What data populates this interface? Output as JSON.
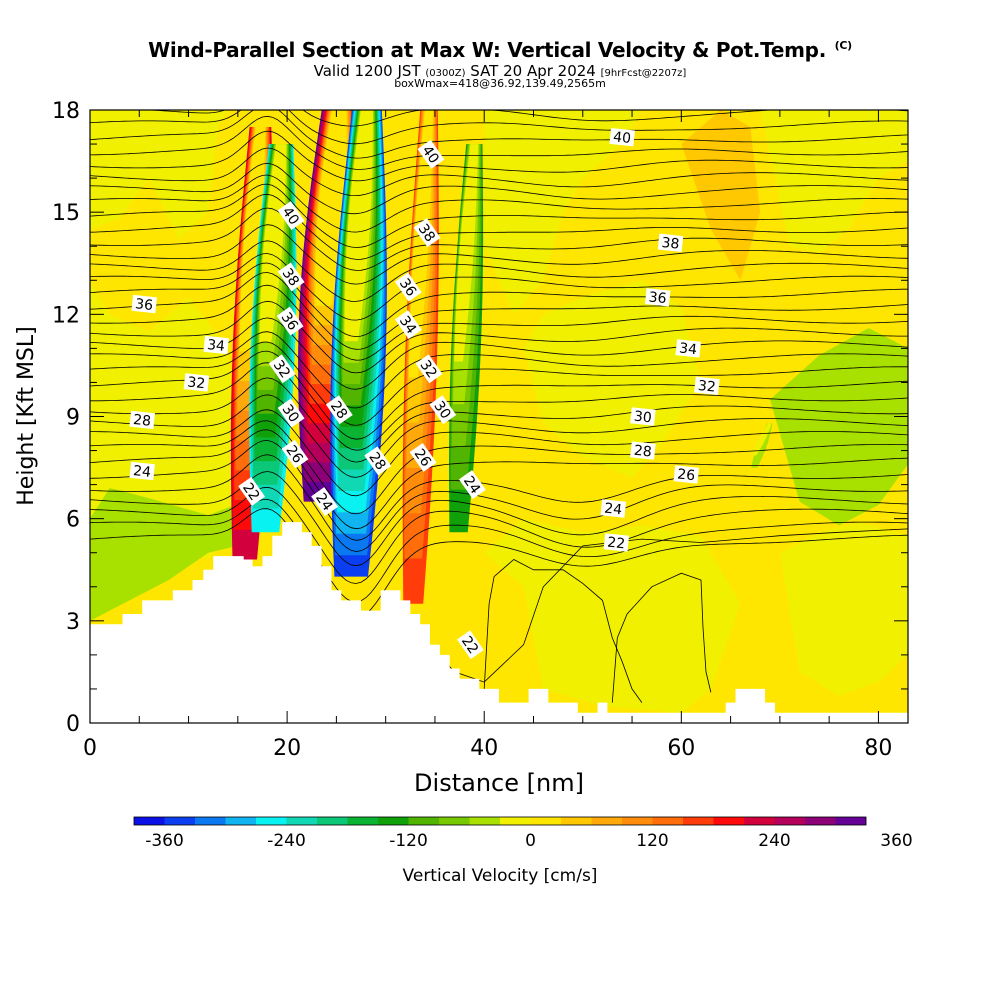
{
  "chart_data": {
    "type": "heatmap",
    "title": "Wind-Parallel Section at Max W: Vertical Velocity & Pot.Temp.",
    "title_mark": "(C)",
    "subtitle_prefix": "Valid 1200 JST",
    "subtitle_zulu": "(0300Z)",
    "subtitle_main": "SAT 20 Apr 2024",
    "subtitle_fcst": "[9hrFcst@2207z]",
    "subnote": "boxWmax=418@36.92,139.49,2565m",
    "xlabel": "Distance [nm]",
    "ylabel": "Height [Kft MSL]",
    "xlim": [
      0,
      83
    ],
    "ylim": [
      0,
      18
    ],
    "x_ticks": [
      "0",
      "20",
      "40",
      "60",
      "80"
    ],
    "y_ticks": [
      "0",
      "3",
      "6",
      "9",
      "12",
      "15",
      "18"
    ],
    "colorbar": {
      "label": "Vertical Velocity [cm/s]",
      "min": -390,
      "step": 30,
      "tick_labels": [
        "-360",
        "-240",
        "-120",
        "0",
        "120",
        "240",
        "360"
      ],
      "colors": [
        "#0a10e6",
        "#0a3ef0",
        "#0a78f0",
        "#10b4f0",
        "#08f2f2",
        "#10d8b4",
        "#0ac878",
        "#0ab432",
        "#10a00a",
        "#50b400",
        "#78c800",
        "#a8e000",
        "#f0f000",
        "#ffe600",
        "#ffc800",
        "#ffaa0a",
        "#ff8c0a",
        "#ff6e0a",
        "#ff3c0a",
        "#ff0a0a",
        "#d2003c",
        "#b4005a",
        "#8c0078",
        "#640096"
      ]
    },
    "terrain_profile_kft": [
      [
        0,
        2.9
      ],
      [
        3.3,
        2.9
      ],
      [
        3.3,
        3.2
      ],
      [
        5.3,
        3.2
      ],
      [
        5.3,
        3.6
      ],
      [
        8.4,
        3.6
      ],
      [
        8.4,
        3.9
      ],
      [
        10.4,
        3.9
      ],
      [
        10.4,
        4.2
      ],
      [
        11.5,
        4.2
      ],
      [
        11.5,
        4.5
      ],
      [
        12.5,
        4.5
      ],
      [
        12.5,
        4.9
      ],
      [
        15.6,
        4.9
      ],
      [
        15.6,
        4.8
      ],
      [
        16.5,
        4.8
      ],
      [
        16.5,
        4.6
      ],
      [
        17.5,
        4.6
      ],
      [
        17.5,
        4.9
      ],
      [
        18.5,
        4.9
      ],
      [
        18.5,
        5.5
      ],
      [
        19.5,
        5.5
      ],
      [
        19.5,
        5.9
      ],
      [
        21.5,
        5.9
      ],
      [
        21.5,
        5.6
      ],
      [
        22.5,
        5.6
      ],
      [
        22.5,
        5.2
      ],
      [
        23.5,
        5.2
      ],
      [
        23.5,
        4.6
      ],
      [
        24.5,
        4.6
      ],
      [
        24.5,
        3.9
      ],
      [
        25.5,
        3.9
      ],
      [
        25.5,
        3.6
      ],
      [
        27.5,
        3.6
      ],
      [
        27.5,
        3.3
      ],
      [
        29.5,
        3.3
      ],
      [
        29.5,
        3.9
      ],
      [
        31.5,
        3.9
      ],
      [
        31.5,
        3.6
      ],
      [
        32.5,
        3.6
      ],
      [
        32.5,
        3.2
      ],
      [
        33.5,
        3.2
      ],
      [
        33.5,
        2.9
      ],
      [
        34.5,
        2.9
      ],
      [
        34.5,
        2.3
      ],
      [
        35.5,
        2.3
      ],
      [
        35.5,
        2.0
      ],
      [
        36.5,
        2.0
      ],
      [
        36.5,
        1.6
      ],
      [
        37.5,
        1.6
      ],
      [
        37.5,
        1.3
      ],
      [
        39.5,
        1.3
      ],
      [
        39.5,
        1.0
      ],
      [
        41.5,
        1.0
      ],
      [
        41.5,
        0.6
      ],
      [
        44.5,
        0.6
      ],
      [
        44.5,
        1.0
      ],
      [
        46.5,
        1.0
      ],
      [
        46.5,
        0.6
      ],
      [
        49.5,
        0.6
      ],
      [
        49.5,
        0.3
      ],
      [
        51.5,
        0.3
      ],
      [
        51.5,
        0.6
      ],
      [
        52.5,
        0.6
      ],
      [
        52.5,
        0.3
      ],
      [
        57.5,
        0.3
      ],
      [
        57.5,
        0.3
      ],
      [
        63.5,
        0.3
      ],
      [
        63.5,
        0.3
      ],
      [
        64.5,
        0.3
      ],
      [
        64.5,
        0.6
      ],
      [
        65.5,
        0.6
      ],
      [
        65.5,
        1.0
      ],
      [
        68.5,
        1.0
      ],
      [
        68.5,
        0.6
      ],
      [
        69.5,
        0.6
      ],
      [
        69.5,
        0.3
      ],
      [
        83,
        0.3
      ]
    ],
    "updraft_bands": [
      {
        "x": 16.5,
        "y0": 4.8,
        "y1": 17.5,
        "w": 1.6,
        "value": 240
      },
      {
        "x": 18.6,
        "y0": 5.6,
        "y1": 17.0,
        "w": 1.8,
        "value": -270
      },
      {
        "x": 24.5,
        "y0": 6.5,
        "y1": 18.0,
        "w": 2.6,
        "value": 330
      },
      {
        "x": 27.3,
        "y0": 4.3,
        "y1": 18.0,
        "w": 2.2,
        "value": -360
      },
      {
        "x": 33.6,
        "y0": 3.5,
        "y1": 18.0,
        "w": 1.3,
        "value": 180
      },
      {
        "x": 38.2,
        "y0": 5.6,
        "y1": 17.0,
        "w": 1.2,
        "value": -150
      },
      {
        "x": 68.2,
        "y0": 7.5,
        "y1": 8.8,
        "w": 0.4,
        "value": -60
      }
    ],
    "theta_contour_labels": [
      {
        "x": 5.5,
        "y": 12.3,
        "text": "36"
      },
      {
        "x": 12.8,
        "y": 11.1,
        "text": "34"
      },
      {
        "x": 10.8,
        "y": 10.0,
        "text": "32"
      },
      {
        "x": 5.3,
        "y": 8.9,
        "text": "28"
      },
      {
        "x": 5.3,
        "y": 7.4,
        "text": "24"
      },
      {
        "x": 20.4,
        "y": 14.9,
        "text": "40"
      },
      {
        "x": 20.4,
        "y": 13.1,
        "text": "38"
      },
      {
        "x": 20.3,
        "y": 11.8,
        "text": "36"
      },
      {
        "x": 19.5,
        "y": 10.4,
        "text": "32"
      },
      {
        "x": 20.4,
        "y": 9.1,
        "text": "30"
      },
      {
        "x": 20.8,
        "y": 7.9,
        "text": "26"
      },
      {
        "x": 16.4,
        "y": 6.8,
        "text": "22"
      },
      {
        "x": 23.8,
        "y": 6.5,
        "text": "24"
      },
      {
        "x": 25.3,
        "y": 9.2,
        "text": "28"
      },
      {
        "x": 29.2,
        "y": 7.7,
        "text": "28"
      },
      {
        "x": 34.6,
        "y": 16.7,
        "text": "40"
      },
      {
        "x": 34.2,
        "y": 14.4,
        "text": "38"
      },
      {
        "x": 32.3,
        "y": 12.8,
        "text": "36"
      },
      {
        "x": 32.3,
        "y": 11.7,
        "text": "34"
      },
      {
        "x": 34.4,
        "y": 10.4,
        "text": "32"
      },
      {
        "x": 35.8,
        "y": 9.2,
        "text": "30"
      },
      {
        "x": 33.8,
        "y": 7.8,
        "text": "26"
      },
      {
        "x": 38.8,
        "y": 7.0,
        "text": "24"
      },
      {
        "x": 54.0,
        "y": 17.2,
        "text": "40"
      },
      {
        "x": 58.9,
        "y": 14.1,
        "text": "38"
      },
      {
        "x": 57.6,
        "y": 12.5,
        "text": "36"
      },
      {
        "x": 60.7,
        "y": 11.0,
        "text": "34"
      },
      {
        "x": 62.6,
        "y": 9.9,
        "text": "32"
      },
      {
        "x": 56.1,
        "y": 9.0,
        "text": "30"
      },
      {
        "x": 56.1,
        "y": 8.0,
        "text": "28"
      },
      {
        "x": 60.5,
        "y": 7.3,
        "text": "26"
      },
      {
        "x": 53.1,
        "y": 6.3,
        "text": "24"
      },
      {
        "x": 53.4,
        "y": 5.3,
        "text": "22"
      },
      {
        "x": 38.6,
        "y": 2.3,
        "text": "22"
      }
    ]
  }
}
